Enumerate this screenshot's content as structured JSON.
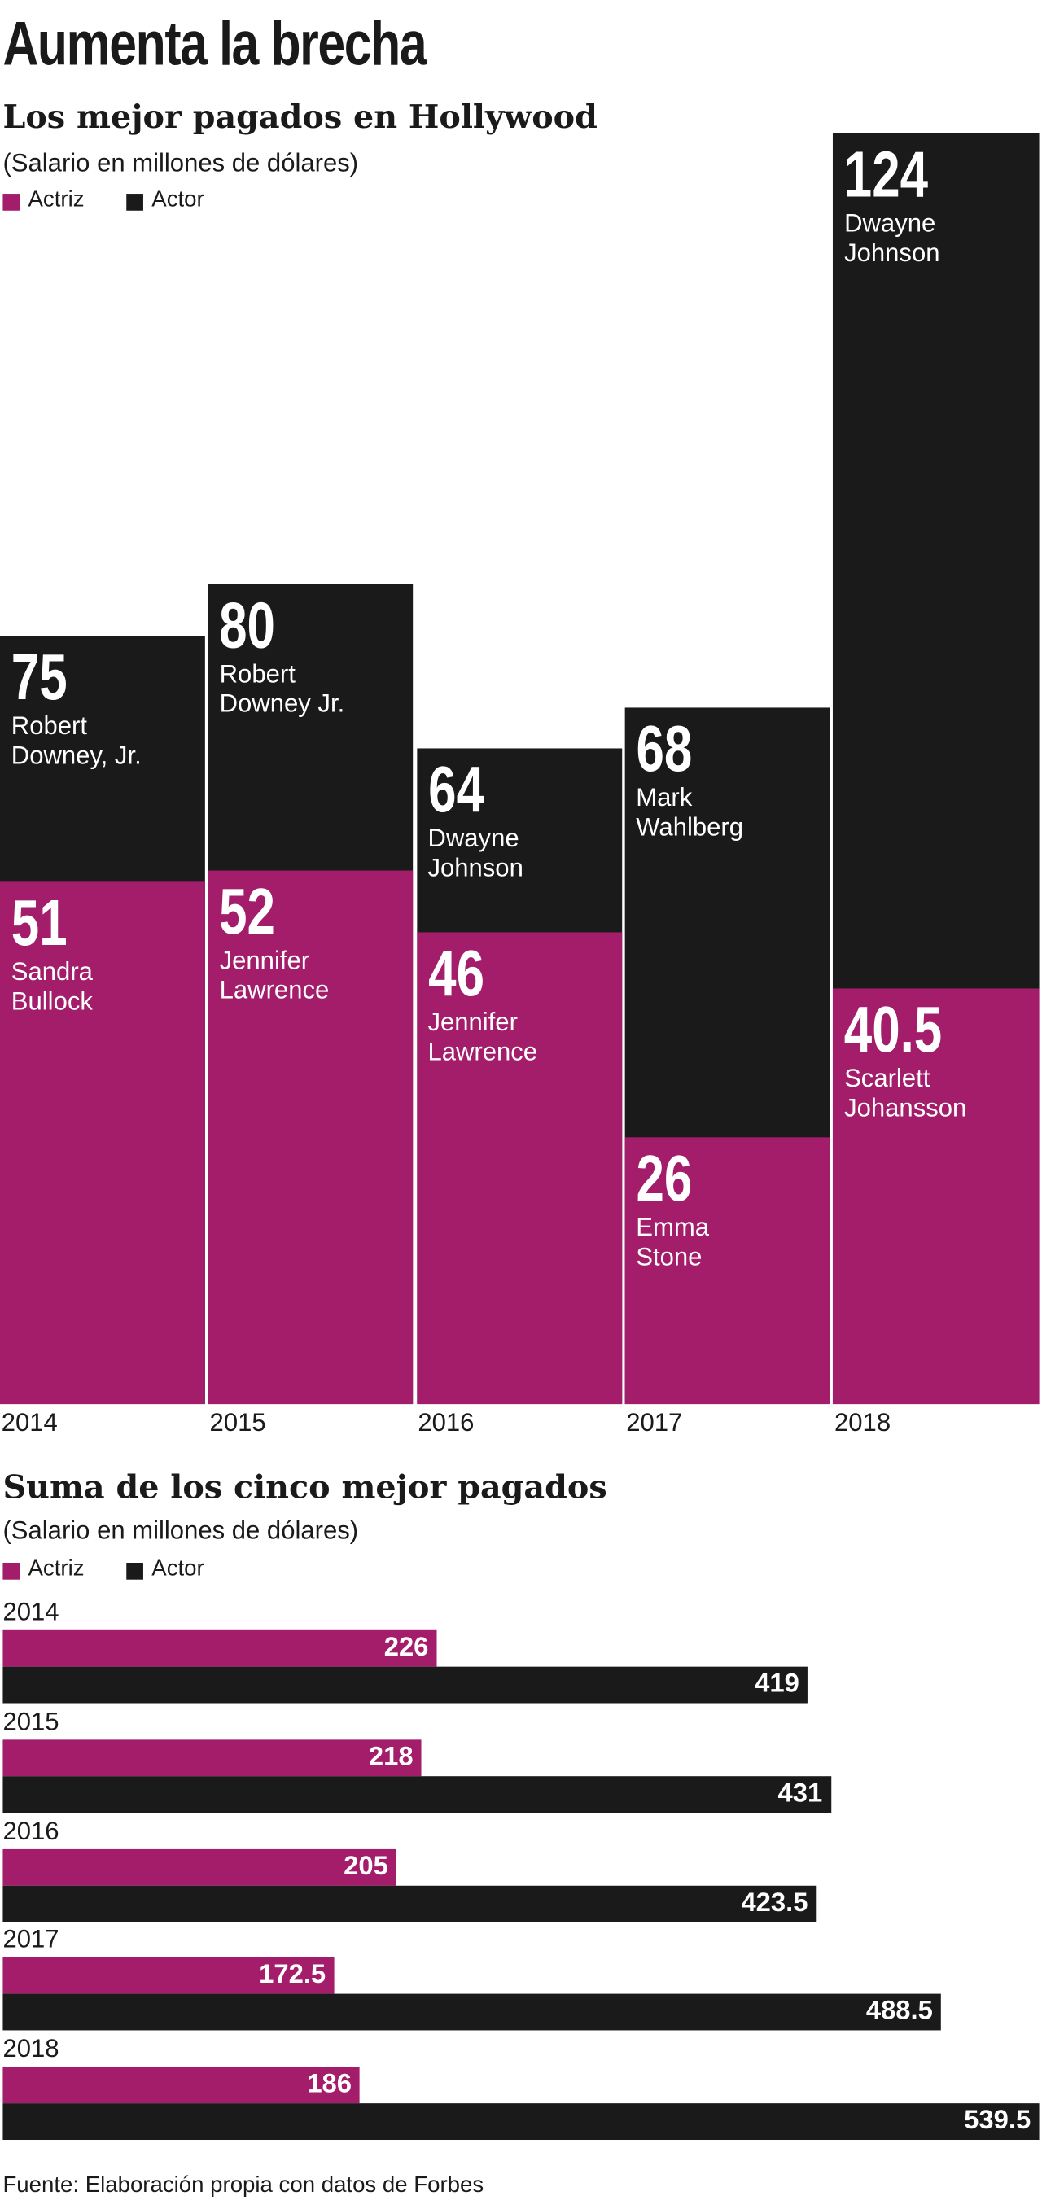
{
  "title": "Aumenta la brecha",
  "source": "Fuente: Elaboración propia  con datos de Forbes",
  "chart_data": [
    {
      "type": "bar",
      "title": "Los mejor pagados en Hollywood",
      "subtitle": "(Salario en millones de dólares)",
      "categories": [
        "2014",
        "2015",
        "2016",
        "2017",
        "2018"
      ],
      "series": [
        {
          "name": "Actriz",
          "color": "#a31d6b",
          "values": [
            51,
            52,
            46,
            26,
            40.5
          ],
          "labels": [
            "Sandra Bullock",
            "Jennifer Lawrence",
            "Jennifer Lawrence",
            "Emma Stone",
            "Scarlett Johansson"
          ]
        },
        {
          "name": "Actor",
          "color": "#1a1a1a",
          "values": [
            75,
            80,
            64,
            68,
            124
          ],
          "labels": [
            "Robert Downey, Jr.",
            "Robert Downey Jr.",
            "Dwayne Johnson",
            "Mark Wahlberg",
            "Dwayne Johnson"
          ]
        }
      ]
    },
    {
      "type": "hbar",
      "title": "Suma de los cinco mejor pagados",
      "subtitle": "(Salario en millones de dólares)",
      "categories": [
        "2014",
        "2015",
        "2016",
        "2017",
        "2018"
      ],
      "series": [
        {
          "name": "Actriz",
          "color": "#a31d6b",
          "values": [
            226,
            218,
            205,
            172.5,
            186
          ]
        },
        {
          "name": "Actor",
          "color": "#1a1a1a",
          "values": [
            419,
            431,
            423.5,
            488.5,
            539.5
          ]
        }
      ]
    }
  ]
}
